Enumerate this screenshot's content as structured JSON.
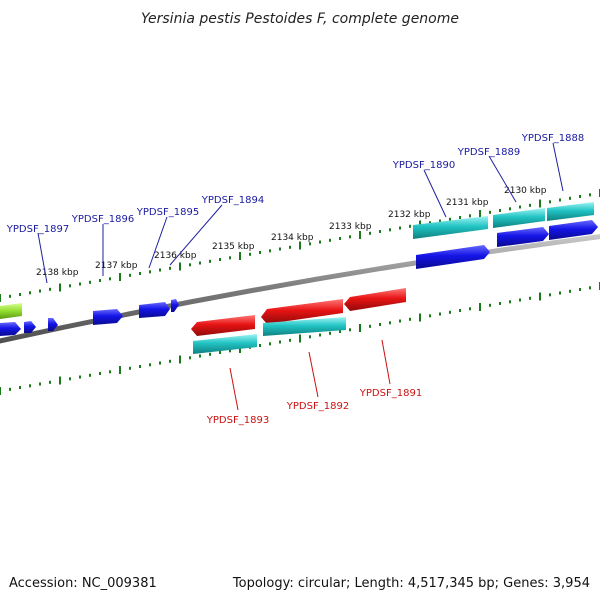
{
  "title": "Yersinia pestis Pestoides F, complete genome",
  "accession": "Accession: NC_009381",
  "summary": "Topology: circular; Length: 4,517,345 bp; Genes: 3,954",
  "colors": {
    "backbone": "#7a7a7a",
    "ticks": "#1a7a1a",
    "forward_cds": "#1010e0",
    "reverse_cds": "#e01010",
    "gene_feature": "#20c0c0",
    "other_feature": "#90dd30",
    "forward_label": "#1a1aa0",
    "reverse_label": "#cc1010"
  },
  "chart_data": {
    "type": "genome_map",
    "region_kbp": [
      2129.5,
      2138.6
    ],
    "tick_labels": [
      "2130 kbp",
      "2131 kbp",
      "2132 kbp",
      "2133 kbp",
      "2134 kbp",
      "2135 kbp",
      "2136 kbp",
      "2137 kbp",
      "2138 kbp"
    ],
    "forward_genes": [
      "YPDSF_1888",
      "YPDSF_1889",
      "YPDSF_1890",
      "YPDSF_1894",
      "YPDSF_1895",
      "YPDSF_1896",
      "YPDSF_1897"
    ],
    "reverse_genes": [
      "YPDSF_1891",
      "YPDSF_1892",
      "YPDSF_1893"
    ]
  }
}
